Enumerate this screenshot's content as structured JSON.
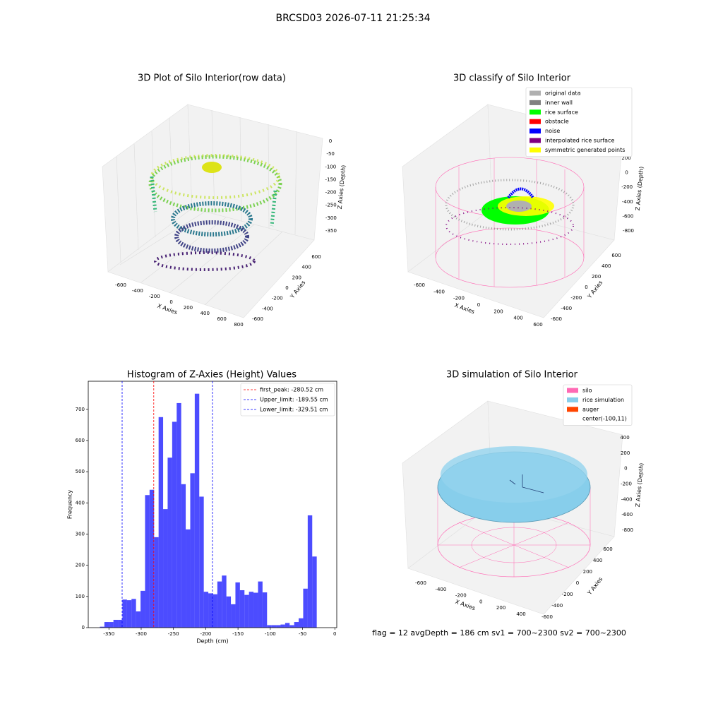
{
  "title": "BRCSD03 2026-07-11 21:25:34",
  "footer": "flag = 12   avgDepth = 186 cm  sv1 = 700~2300  sv2 = 700~2300",
  "chart_data": [
    {
      "type": "3d",
      "title": "3D Plot of Silo Interior(row data)",
      "xlabel": "X Axies",
      "ylabel": "Y Axies",
      "zlabel": "Z Axies (Depth)",
      "xticks": [
        -600,
        -400,
        -200,
        0,
        200,
        400,
        600,
        800
      ],
      "yticks": [
        -600,
        -400,
        -200,
        0,
        200,
        400,
        600
      ],
      "zticks": [
        0,
        -50,
        -100,
        -150,
        -200,
        -250,
        -300,
        -350
      ]
    },
    {
      "type": "3d",
      "title": "3D classify of Silo Interior",
      "xlabel": "X Axies",
      "ylabel": "Y Axies",
      "zlabel": "Z Axies (Depth)",
      "xticks": [
        -600,
        -400,
        -200,
        0,
        200,
        400,
        600
      ],
      "yticks": [
        -600,
        -400,
        -200,
        0,
        200,
        400,
        600
      ],
      "zticks": [
        200,
        0,
        -200,
        -400,
        -600,
        -800
      ],
      "legend": [
        {
          "name": "original data",
          "color": "#b0b0b0"
        },
        {
          "name": "inner wall",
          "color": "#808080"
        },
        {
          "name": "rice surface",
          "color": "#00ff00"
        },
        {
          "name": "obstacle",
          "color": "#ff0000"
        },
        {
          "name": "noise",
          "color": "#0000ff"
        },
        {
          "name": "interpolated rice surface",
          "color": "#800080"
        },
        {
          "name": "symmetric generated points",
          "color": "#ffff00"
        }
      ]
    },
    {
      "type": "histogram",
      "title": "Histogram of Z-Axies (Height) Values",
      "xlabel": "Depth (cm)",
      "ylabel": "Frequency",
      "color": "#0000ff",
      "bins": [
        -364,
        -357,
        -350,
        -343,
        -336,
        -329,
        -322,
        -315,
        -308,
        -301,
        -294,
        -287,
        -280,
        -273,
        -266,
        -259,
        -252,
        -245,
        -238,
        -231,
        -224,
        -217,
        -210,
        -203,
        -196,
        -189,
        -182,
        -175,
        -168,
        -161,
        -154,
        -147,
        -140,
        -133,
        -126,
        -119,
        -112,
        -105,
        -98,
        -91,
        -84,
        -77,
        -70,
        -63,
        -56,
        -49,
        -42,
        -35,
        -28
      ],
      "counts": [
        3,
        18,
        18,
        25,
        25,
        90,
        88,
        92,
        52,
        118,
        425,
        442,
        290,
        675,
        380,
        545,
        660,
        720,
        460,
        315,
        495,
        750,
        420,
        115,
        110,
        107,
        148,
        167,
        100,
        75,
        145,
        120,
        105,
        115,
        112,
        148,
        113,
        8,
        8,
        8,
        10,
        15,
        8,
        18,
        30,
        125,
        360,
        228
      ],
      "xlim": [
        -382,
        3
      ],
      "ylim": [
        0,
        790
      ],
      "xticks": [
        -350,
        -300,
        -250,
        -200,
        -150,
        -100,
        -50,
        0
      ],
      "yticks": [
        0,
        100,
        200,
        300,
        400,
        500,
        600,
        700
      ],
      "lines": [
        {
          "name": "first_peak: -280.52 cm",
          "value": -280.52,
          "color": "#ff0000"
        },
        {
          "name": "Upper_limit: -189.55 cm",
          "value": -189.55,
          "color": "#0000ff"
        },
        {
          "name": "Lower_limit: -329.51 cm",
          "value": -329.51,
          "color": "#0000ff"
        }
      ],
      "legend_loc": "upper right"
    },
    {
      "type": "3d",
      "title": "3D simulation of Silo Interior",
      "xlabel": "X Axies",
      "ylabel": "Y Axies",
      "zlabel": "Z Axies (Depth)",
      "xticks": [
        -600,
        -400,
        -200,
        0,
        200,
        400
      ],
      "yticks": [
        -600,
        -400,
        -200,
        0,
        200,
        400,
        600
      ],
      "zticks": [
        400,
        200,
        0,
        -200,
        -400,
        -600,
        -800
      ],
      "legend": [
        {
          "name": "silo",
          "color": "#ff69b4"
        },
        {
          "name": "rice simulation",
          "color": "#87ceeb"
        },
        {
          "name": "auger",
          "color": "#ff4500"
        },
        {
          "name": "center(-100,11)"
        }
      ]
    }
  ]
}
